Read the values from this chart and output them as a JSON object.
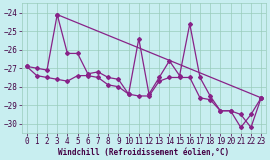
{
  "xlabel": "Windchill (Refroidissement éolien,°C)",
  "bg_color": "#c8eef0",
  "grid_color": "#99ccbb",
  "line_color": "#882288",
  "ylim": [
    -30.5,
    -23.5
  ],
  "xlim": [
    -0.5,
    23.5
  ],
  "yticks": [
    -30,
    -29,
    -28,
    -27,
    -26,
    -25,
    -24
  ],
  "xticks": [
    0,
    1,
    2,
    3,
    4,
    5,
    6,
    7,
    8,
    9,
    10,
    11,
    12,
    13,
    14,
    15,
    16,
    17,
    18,
    19,
    20,
    21,
    22,
    23
  ],
  "line1_x": [
    0,
    1,
    2,
    3,
    4,
    5,
    6,
    7,
    8,
    9,
    10,
    11,
    12,
    13,
    14,
    15,
    16,
    17,
    18,
    19,
    20,
    21,
    22,
    23
  ],
  "line1_y": [
    -26.9,
    -27.0,
    -27.1,
    -24.1,
    -26.2,
    -26.2,
    -27.3,
    -27.2,
    -27.5,
    -27.6,
    -28.4,
    -25.4,
    -28.4,
    -27.5,
    -26.6,
    -27.4,
    -24.6,
    -27.5,
    -28.5,
    -29.3,
    -29.3,
    -30.2,
    -29.5,
    -28.6
  ],
  "line2_x": [
    3,
    23
  ],
  "line2_y": [
    -24.1,
    -28.6
  ],
  "line3_x": [
    0,
    1,
    2,
    3,
    4,
    5,
    6,
    7,
    8,
    9,
    10,
    11,
    12,
    13,
    14,
    15,
    16,
    17,
    18,
    19,
    20,
    21,
    22,
    23
  ],
  "line3_y": [
    -26.9,
    -27.4,
    -27.5,
    -27.6,
    -27.7,
    -27.4,
    -27.4,
    -27.5,
    -27.9,
    -28.0,
    -28.4,
    -28.5,
    -28.5,
    -27.7,
    -27.5,
    -27.5,
    -27.5,
    -28.6,
    -28.7,
    -29.3,
    -29.3,
    -29.5,
    -30.2,
    -28.6
  ],
  "marker": "D",
  "markersize": 2.0,
  "linewidth": 0.9,
  "tick_labelsize": 5.5,
  "xlabel_fontsize": 5.5
}
